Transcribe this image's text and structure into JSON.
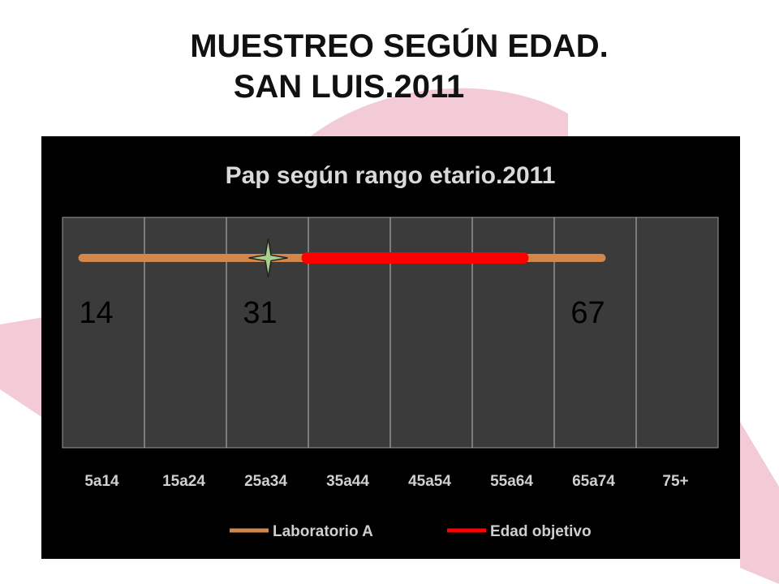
{
  "slide": {
    "title_line1": "MUESTREO  SEGÚN EDAD.",
    "title_line2": "SAN LUIS.2011"
  },
  "colors": {
    "panel": "#000000",
    "plot_area": "#3b3b3b",
    "grid": "#bdbdbd",
    "laboratorio": "#d4874a",
    "objetivo": "#ff0000",
    "marker": "#a8d08d",
    "ribbon": "#e8a0b6"
  },
  "chart_data": {
    "type": "line",
    "title": "Pap según rango etario.2011",
    "categories": [
      "5a14",
      "15a24",
      "25a34",
      "35a44",
      "45a54",
      "55a64",
      "65a74",
      "75+"
    ],
    "series": [
      {
        "name": "Laboratorio A",
        "x_start": "5a14",
        "x_end": "65a74",
        "color": "#d4874a"
      },
      {
        "name": "Edad objetivo",
        "x_start": "35a44",
        "x_end": "55a64",
        "color": "#ff0000"
      }
    ],
    "annotations": [
      {
        "text": "14",
        "category": "5a14"
      },
      {
        "text": "31",
        "category": "25a34"
      },
      {
        "text": "67",
        "category": "65a74"
      }
    ],
    "marker": {
      "shape": "four-point-star",
      "category": "25a34"
    },
    "grid": true,
    "legend": "bottom"
  }
}
